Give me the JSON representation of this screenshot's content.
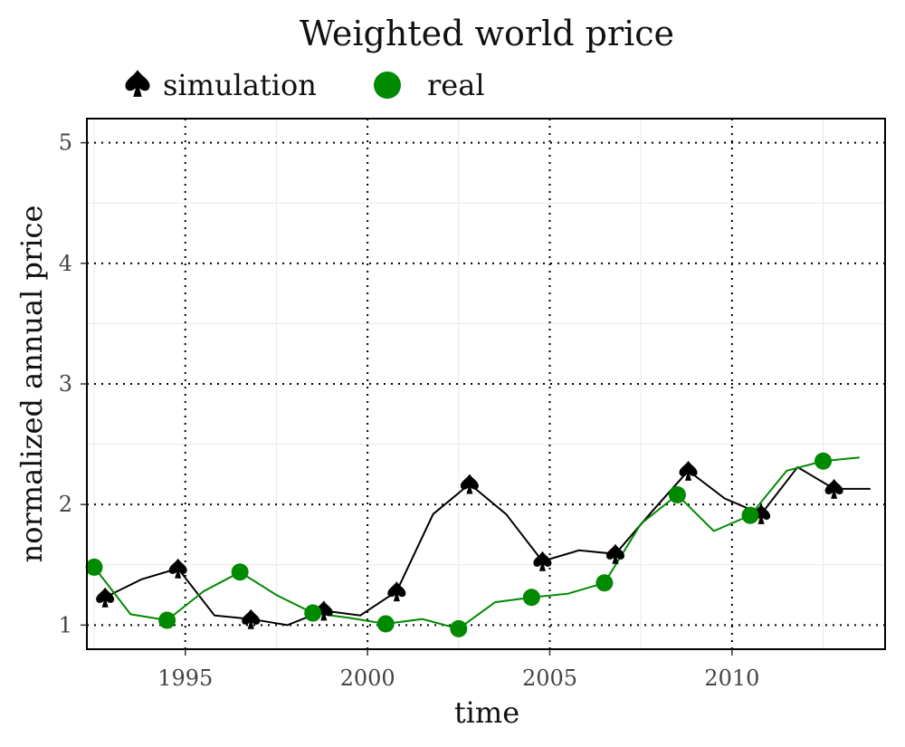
{
  "chart_data": {
    "type": "line",
    "title": "Weighted world price",
    "xlabel": "time",
    "ylabel": "normalized annual price",
    "xlim": [
      1992.3,
      2014.2
    ],
    "ylim": [
      0.8,
      5.2
    ],
    "x_ticks": [
      1995,
      2000,
      2005,
      2010
    ],
    "y_ticks": [
      1,
      2,
      3,
      4,
      5
    ],
    "grid": true,
    "legend": {
      "position": "top"
    },
    "series": [
      {
        "name": "simulation",
        "marker": "spade",
        "color": "#000000",
        "line": [
          [
            1992.8,
            1.23
          ],
          [
            1993.8,
            1.38
          ],
          [
            1994.8,
            1.47
          ],
          [
            1995.8,
            1.08
          ],
          [
            1996.8,
            1.05
          ],
          [
            1997.8,
            1.0
          ],
          [
            1998.8,
            1.12
          ],
          [
            1999.8,
            1.08
          ],
          [
            2000.8,
            1.28
          ],
          [
            2001.8,
            1.92
          ],
          [
            2002.8,
            2.17
          ],
          [
            2003.8,
            1.92
          ],
          [
            2004.8,
            1.53
          ],
          [
            2005.8,
            1.62
          ],
          [
            2006.8,
            1.59
          ],
          [
            2007.8,
            1.94
          ],
          [
            2008.8,
            2.28
          ],
          [
            2009.8,
            2.05
          ],
          [
            2010.8,
            1.92
          ],
          [
            2011.8,
            2.31
          ],
          [
            2012.8,
            2.13
          ],
          [
            2013.8,
            2.13
          ]
        ],
        "markers": [
          [
            1992.8,
            1.23
          ],
          [
            1994.8,
            1.47
          ],
          [
            1996.8,
            1.05
          ],
          [
            1998.8,
            1.12
          ],
          [
            2000.8,
            1.28
          ],
          [
            2002.8,
            2.17
          ],
          [
            2004.8,
            1.53
          ],
          [
            2006.8,
            1.59
          ],
          [
            2008.8,
            2.28
          ],
          [
            2010.8,
            1.92
          ],
          [
            2012.8,
            2.13
          ]
        ]
      },
      {
        "name": "real",
        "marker": "circle",
        "color": "#008a00",
        "line": [
          [
            1992.5,
            1.48
          ],
          [
            1993.5,
            1.09
          ],
          [
            1994.5,
            1.04
          ],
          [
            1995.5,
            1.28
          ],
          [
            1996.5,
            1.44
          ],
          [
            1997.5,
            1.25
          ],
          [
            1998.5,
            1.1
          ],
          [
            1999.5,
            1.06
          ],
          [
            2000.5,
            1.01
          ],
          [
            2001.5,
            1.05
          ],
          [
            2002.5,
            0.97
          ],
          [
            2003.5,
            1.19
          ],
          [
            2004.5,
            1.23
          ],
          [
            2005.5,
            1.26
          ],
          [
            2006.5,
            1.35
          ],
          [
            2007.5,
            1.84
          ],
          [
            2008.5,
            2.08
          ],
          [
            2009.5,
            1.78
          ],
          [
            2010.5,
            1.91
          ],
          [
            2011.5,
            2.28
          ],
          [
            2012.5,
            2.36
          ],
          [
            2013.5,
            2.39
          ]
        ],
        "markers": [
          [
            1992.5,
            1.48
          ],
          [
            1994.5,
            1.04
          ],
          [
            1996.5,
            1.44
          ],
          [
            1998.5,
            1.1
          ],
          [
            2000.5,
            1.01
          ],
          [
            2002.5,
            0.97
          ],
          [
            2004.5,
            1.23
          ],
          [
            2006.5,
            1.35
          ],
          [
            2008.5,
            2.08
          ],
          [
            2010.5,
            1.91
          ],
          [
            2012.5,
            2.36
          ]
        ]
      }
    ]
  }
}
